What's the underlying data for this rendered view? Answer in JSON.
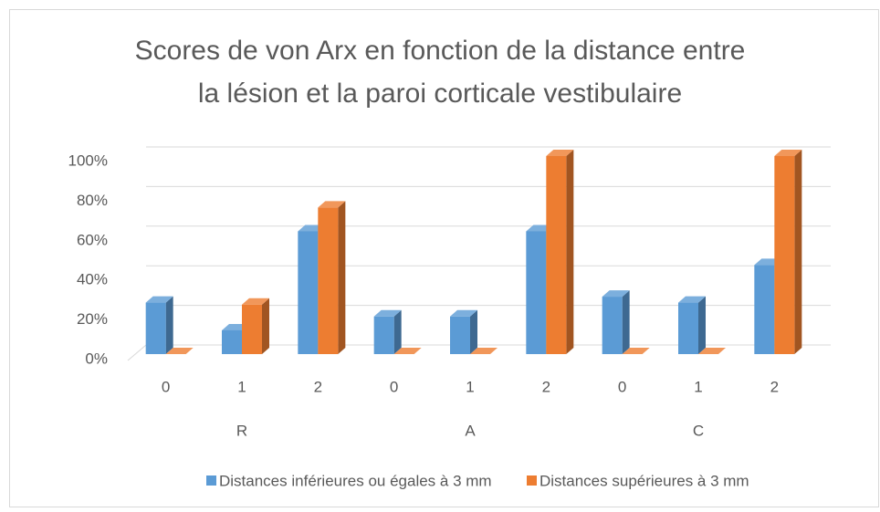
{
  "chart_data": {
    "type": "bar3d",
    "title": [
      "Scores de von Arx en fonction de la distance entre",
      "la lésion et la paroi corticale vestibulaire"
    ],
    "categories": [
      "0",
      "1",
      "2",
      "0",
      "1",
      "2",
      "0",
      "1",
      "2"
    ],
    "groups": [
      "R",
      "A",
      "C"
    ],
    "series": [
      {
        "name": "Distances inférieures ou égales à 3 mm",
        "color": "#5b9bd5",
        "values": [
          26,
          12,
          62,
          19,
          19,
          62,
          29,
          26,
          45
        ]
      },
      {
        "name": "Distances supérieures à 3 mm",
        "color": "#ed7d31",
        "values": [
          0,
          25,
          74,
          0,
          0,
          100,
          0,
          0,
          100
        ]
      }
    ],
    "ylim": [
      0,
      100
    ],
    "yticks": [
      {
        "value": 0,
        "label": "0%"
      },
      {
        "value": 20,
        "label": "20%"
      },
      {
        "value": 40,
        "label": "40%"
      },
      {
        "value": 60,
        "label": "60%"
      },
      {
        "value": 80,
        "label": "80%"
      },
      {
        "value": 100,
        "label": "100%"
      }
    ],
    "grid": true,
    "legend": "bottom"
  }
}
